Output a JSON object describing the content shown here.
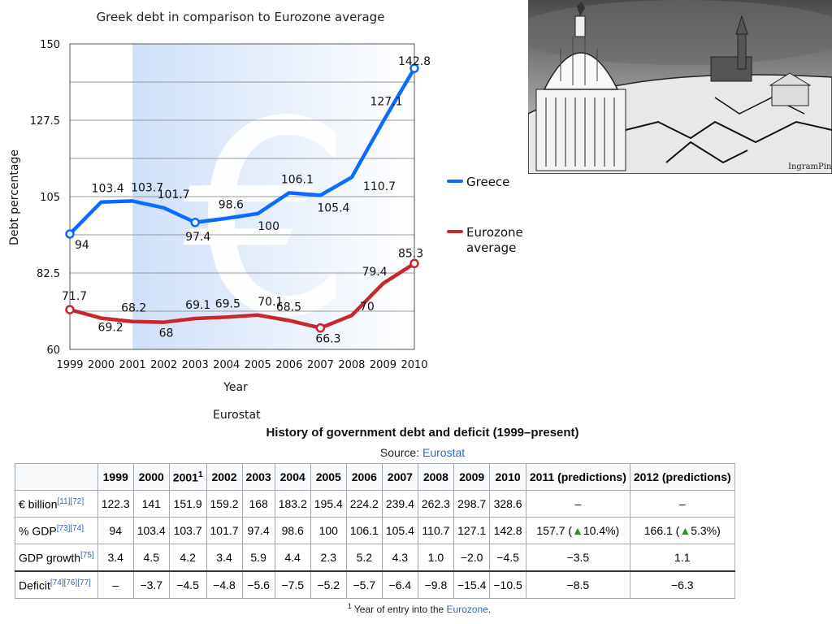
{
  "chart_data": {
    "type": "line",
    "title": "Greek debt in comparison to Eurozone average",
    "xlabel": "Year",
    "ylabel": "Debt percentage",
    "x": [
      "1999",
      "2000",
      "2001",
      "2002",
      "2003",
      "2004",
      "2005",
      "2006",
      "2007",
      "2008",
      "2009",
      "2010"
    ],
    "ylim": [
      60,
      150
    ],
    "yticks": [
      "60",
      "82.5",
      "105",
      "127.5",
      "150"
    ],
    "grid": true,
    "legend_position": "right",
    "background_symbol": "€",
    "series": [
      {
        "name": "Greece",
        "color": "#0a6cff",
        "values": [
          94,
          103.4,
          103.7,
          101.7,
          97.4,
          98.6,
          100,
          106.1,
          105.4,
          110.7,
          127.1,
          142.8
        ],
        "labels": [
          "94",
          "103.4",
          "103.7",
          "101.7",
          "97.4",
          "98.6",
          "100",
          "106.1",
          "105.4",
          "110.7",
          "127.1",
          "142.8"
        ]
      },
      {
        "name": "Eurozone average",
        "color": "#c8282d",
        "values": [
          71.7,
          69.2,
          68.2,
          68,
          69.1,
          69.5,
          70.1,
          68.5,
          66.3,
          70,
          79.4,
          85.3
        ],
        "labels": [
          "71.7",
          "69.2",
          "68.2",
          "68",
          "69.1",
          "69.5",
          "70.1",
          "68.5",
          "66.3",
          "70",
          "79.4",
          "85.3"
        ]
      }
    ],
    "legend": [
      {
        "lines": [
          "Greece"
        ]
      },
      {
        "lines": [
          "Eurozone",
          "average"
        ]
      }
    ]
  },
  "source_note": "Eurostat",
  "table": {
    "caption": "History of government debt and deficit (1999–present)",
    "source_prefix": "Source: ",
    "source_link": "Eurostat",
    "header": [
      {
        "text": "",
        "sup": ""
      },
      {
        "text": "1999",
        "sup": ""
      },
      {
        "text": "2000",
        "sup": ""
      },
      {
        "text": "2001",
        "sup": "1"
      },
      {
        "text": "2002",
        "sup": ""
      },
      {
        "text": "2003",
        "sup": ""
      },
      {
        "text": "2004",
        "sup": ""
      },
      {
        "text": "2005",
        "sup": ""
      },
      {
        "text": "2006",
        "sup": ""
      },
      {
        "text": "2007",
        "sup": ""
      },
      {
        "text": "2008",
        "sup": ""
      },
      {
        "text": "2009",
        "sup": ""
      },
      {
        "text": "2010",
        "sup": ""
      },
      {
        "text": "2011 (predictions)",
        "sup": ""
      },
      {
        "text": "2012 (predictions)",
        "sup": ""
      }
    ],
    "rows": [
      {
        "label": "€ billion",
        "refs": "[11][72]",
        "cells": [
          "122.3",
          "141",
          "151.9",
          "159.2",
          "168",
          "183.2",
          "195.4",
          "224.2",
          "239.4",
          "262.3",
          "298.7",
          "328.6"
        ],
        "pred": [
          {
            "value": "–"
          },
          {
            "value": "–"
          }
        ]
      },
      {
        "label": "% GDP",
        "refs": "[73][74]",
        "cells": [
          "94",
          "103.4",
          "103.7",
          "101.7",
          "97.4",
          "98.6",
          "100",
          "106.1",
          "105.4",
          "110.7",
          "127.1",
          "142.8"
        ],
        "pred": [
          {
            "value": "157.7 (",
            "arrow": "▲",
            "change": "10.4%)"
          },
          {
            "value": "166.1 (",
            "arrow": "▲",
            "change": "5.3%)"
          }
        ]
      },
      {
        "label": "GDP growth",
        "refs": "[75]",
        "cells": [
          "3.4",
          "4.5",
          "4.2",
          "3.4",
          "5.9",
          "4.4",
          "2.3",
          "5.2",
          "4.3",
          "1.0",
          "−2.0",
          "−4.5"
        ],
        "pred": [
          {
            "value": "−3.5"
          },
          {
            "value": "1.1"
          }
        ]
      },
      {
        "label": "Deficit",
        "refs": "[74][76][77]",
        "cells": [
          "–",
          "−3.7",
          "−4.5",
          "−4.8",
          "−5.6",
          "−7.5",
          "−5.2",
          "−5.7",
          "−6.4",
          "−9.8",
          "−15.4",
          "−10.5"
        ],
        "pred": [
          {
            "value": "−8.5"
          },
          {
            "value": "−6.3"
          }
        ]
      }
    ],
    "footnote": {
      "sup": "1",
      "text": " Year of entry into the ",
      "link": "Eurozone",
      "end": "."
    }
  },
  "cartoon": {
    "description_icon": "capitol-on-cracked-earth-illustration",
    "signature": "IngramPinn"
  }
}
